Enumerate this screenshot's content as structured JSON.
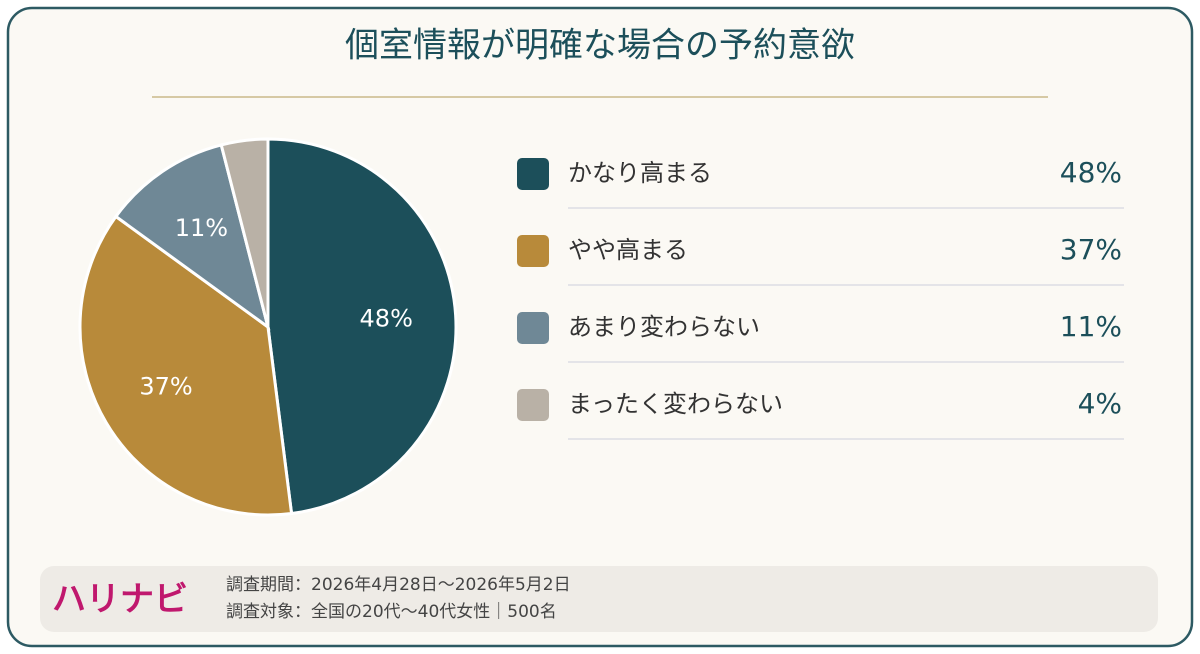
{
  "chart_data": {
    "type": "pie",
    "title": "個室情報が明確な場合の予約意欲",
    "categories": [
      "かなり高まる",
      "やや高まる",
      "あまり変わらない",
      "まったく変わらない"
    ],
    "values": [
      48,
      37,
      11,
      4
    ],
    "value_labels": [
      "48%",
      "37%",
      "11%",
      "4%"
    ],
    "colors": [
      "#1c4f5a",
      "#b88a3a",
      "#6f8896",
      "#b9b1a6"
    ]
  },
  "footer": {
    "brand": "ハリナビ",
    "period": "調査期間：2026年4月28日～2026年5月2日",
    "target": "調査対象：全国の20代～40代女性｜500名"
  }
}
